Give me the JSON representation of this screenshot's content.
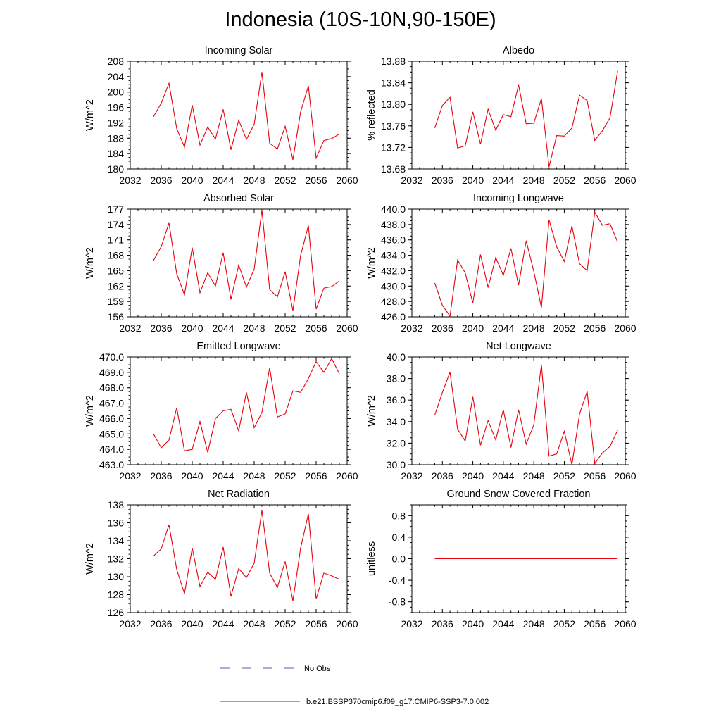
{
  "figure": {
    "title": "Indonesia (10S-10N,90-150E)"
  },
  "legend": {
    "entries": [
      {
        "label": "No Obs",
        "style": "dashed",
        "color": "#5a5ab4"
      },
      {
        "label": "b.e21.BSSP370cmip6.f09_g17.CMIP6-SSP3-7.0.002",
        "style": "solid",
        "color": "#e8000b"
      }
    ]
  },
  "colors": {
    "series": "#e8000b",
    "axis": "#000000"
  },
  "chart_data": [
    {
      "type": "line",
      "title": "Incoming Solar",
      "xlabel": "",
      "ylabel": "W/m^2",
      "xlim": [
        2032,
        2060
      ],
      "ylim": [
        180,
        208
      ],
      "xticks": [
        2032,
        2036,
        2040,
        2044,
        2048,
        2052,
        2056,
        2060
      ],
      "xtick_labels": [
        "2032",
        "2036",
        "2040",
        "2044",
        "2048",
        "2052",
        "2056",
        "2060"
      ],
      "yticks": [
        180,
        184,
        188,
        192,
        196,
        200,
        204,
        208
      ],
      "ytick_labels": [
        "180",
        "184",
        "188",
        "192",
        "196",
        "200",
        "204",
        "208"
      ],
      "x": [
        2035,
        2036,
        2037,
        2038,
        2039,
        2040,
        2041,
        2042,
        2043,
        2044,
        2045,
        2046,
        2047,
        2048,
        2049,
        2050,
        2051,
        2052,
        2053,
        2054,
        2055,
        2056,
        2057,
        2058,
        2059
      ],
      "series": [
        {
          "values": [
            193.6,
            197.1,
            202.3,
            190.5,
            185.7,
            196.6,
            186.2,
            190.9,
            187.8,
            195.5,
            185.0,
            192.7,
            187.7,
            191.6,
            205.2,
            186.7,
            185.2,
            191.1,
            182.4,
            194.9,
            201.6,
            182.8,
            187.4,
            187.9,
            189.1
          ]
        }
      ]
    },
    {
      "type": "line",
      "title": "Albedo",
      "xlabel": "",
      "ylabel": "% reflected",
      "xlim": [
        2032,
        2060
      ],
      "ylim": [
        13.68,
        13.88
      ],
      "xticks": [
        2032,
        2036,
        2040,
        2044,
        2048,
        2052,
        2056,
        2060
      ],
      "xtick_labels": [
        "2032",
        "2036",
        "2040",
        "2044",
        "2048",
        "2052",
        "2056",
        "2060"
      ],
      "yticks": [
        13.68,
        13.72,
        13.76,
        13.8,
        13.84,
        13.88
      ],
      "ytick_labels": [
        "13.68",
        "13.72",
        "13.76",
        "13.80",
        "13.84",
        "13.88"
      ],
      "x": [
        2035,
        2036,
        2037,
        2038,
        2039,
        2040,
        2041,
        2042,
        2043,
        2044,
        2045,
        2046,
        2047,
        2048,
        2049,
        2050,
        2051,
        2052,
        2053,
        2054,
        2055,
        2056,
        2057,
        2058,
        2059
      ],
      "series": [
        {
          "values": [
            13.756,
            13.798,
            13.813,
            13.719,
            13.723,
            13.786,
            13.726,
            13.791,
            13.752,
            13.781,
            13.777,
            13.836,
            13.764,
            13.765,
            13.811,
            13.684,
            13.742,
            13.741,
            13.756,
            13.817,
            13.807,
            13.733,
            13.751,
            13.775,
            13.862
          ]
        }
      ]
    },
    {
      "type": "line",
      "title": "Absorbed Solar",
      "xlabel": "",
      "ylabel": "W/m^2",
      "xlim": [
        2032,
        2060
      ],
      "ylim": [
        156,
        177
      ],
      "xticks": [
        2032,
        2036,
        2040,
        2044,
        2048,
        2052,
        2056,
        2060
      ],
      "xtick_labels": [
        "2032",
        "2036",
        "2040",
        "2044",
        "2048",
        "2052",
        "2056",
        "2060"
      ],
      "yticks": [
        156,
        159,
        162,
        165,
        168,
        171,
        174,
        177
      ],
      "ytick_labels": [
        "156",
        "159",
        "162",
        "165",
        "168",
        "171",
        "174",
        "177"
      ],
      "x": [
        2035,
        2036,
        2037,
        2038,
        2039,
        2040,
        2041,
        2042,
        2043,
        2044,
        2045,
        2046,
        2047,
        2048,
        2049,
        2050,
        2051,
        2052,
        2053,
        2054,
        2055,
        2056,
        2057,
        2058,
        2059
      ],
      "series": [
        {
          "values": [
            167.0,
            169.7,
            174.3,
            164.4,
            160.3,
            169.5,
            160.7,
            164.6,
            162.0,
            168.5,
            159.4,
            166.1,
            161.8,
            165.3,
            176.8,
            161.3,
            159.9,
            164.8,
            157.2,
            168.0,
            173.8,
            157.5,
            161.6,
            161.9,
            163.0
          ]
        }
      ]
    },
    {
      "type": "line",
      "title": "Incoming Longwave",
      "xlabel": "",
      "ylabel": "W/m^2",
      "xlim": [
        2032,
        2060
      ],
      "ylim": [
        426.0,
        440.0
      ],
      "xticks": [
        2032,
        2036,
        2040,
        2044,
        2048,
        2052,
        2056,
        2060
      ],
      "xtick_labels": [
        "2032",
        "2036",
        "2040",
        "2044",
        "2048",
        "2052",
        "2056",
        "2060"
      ],
      "yticks": [
        426,
        428,
        430,
        432,
        434,
        436,
        438,
        440
      ],
      "ytick_labels": [
        "426.0",
        "428.0",
        "430.0",
        "432.0",
        "434.0",
        "436.0",
        "438.0",
        "440.0"
      ],
      "x": [
        2035,
        2036,
        2037,
        2038,
        2039,
        2040,
        2041,
        2042,
        2043,
        2044,
        2045,
        2046,
        2047,
        2048,
        2049,
        2050,
        2051,
        2052,
        2053,
        2054,
        2055,
        2056,
        2057,
        2058,
        2059
      ],
      "series": [
        {
          "values": [
            430.4,
            427.5,
            426.1,
            433.4,
            431.7,
            427.8,
            434.1,
            429.8,
            433.7,
            431.4,
            434.9,
            430.1,
            435.9,
            431.9,
            427.2,
            438.6,
            435.1,
            433.2,
            437.8,
            432.9,
            432.0,
            439.6,
            437.9,
            438.1,
            435.7
          ]
        }
      ]
    },
    {
      "type": "line",
      "title": "Emitted Longwave",
      "xlabel": "",
      "ylabel": "W/m^2",
      "xlim": [
        2032,
        2060
      ],
      "ylim": [
        463.0,
        470.0
      ],
      "xticks": [
        2032,
        2036,
        2040,
        2044,
        2048,
        2052,
        2056,
        2060
      ],
      "xtick_labels": [
        "2032",
        "2036",
        "2040",
        "2044",
        "2048",
        "2052",
        "2056",
        "2060"
      ],
      "yticks": [
        463,
        464,
        465,
        466,
        467,
        468,
        469,
        470
      ],
      "ytick_labels": [
        "463.0",
        "464.0",
        "465.0",
        "466.0",
        "467.0",
        "468.0",
        "469.0",
        "470.0"
      ],
      "x": [
        2035,
        2036,
        2037,
        2038,
        2039,
        2040,
        2041,
        2042,
        2043,
        2044,
        2045,
        2046,
        2047,
        2048,
        2049,
        2050,
        2051,
        2052,
        2053,
        2054,
        2055,
        2056,
        2057,
        2058,
        2059
      ],
      "series": [
        {
          "values": [
            465.0,
            464.1,
            464.6,
            466.7,
            463.9,
            464.0,
            465.8,
            463.8,
            466.0,
            466.5,
            466.6,
            465.2,
            467.7,
            465.4,
            466.4,
            469.3,
            466.1,
            466.3,
            467.8,
            467.7,
            468.6,
            469.7,
            469.0,
            469.9,
            468.9
          ]
        }
      ]
    },
    {
      "type": "line",
      "title": "Net Longwave",
      "xlabel": "",
      "ylabel": "W/m^2",
      "xlim": [
        2032,
        2060
      ],
      "ylim": [
        30.0,
        40.0
      ],
      "xticks": [
        2032,
        2036,
        2040,
        2044,
        2048,
        2052,
        2056,
        2060
      ],
      "xtick_labels": [
        "2032",
        "2036",
        "2040",
        "2044",
        "2048",
        "2052",
        "2056",
        "2060"
      ],
      "yticks": [
        30,
        32,
        34,
        36,
        38,
        40
      ],
      "ytick_labels": [
        "30.0",
        "32.0",
        "34.0",
        "36.0",
        "38.0",
        "40.0"
      ],
      "x": [
        2035,
        2036,
        2037,
        2038,
        2039,
        2040,
        2041,
        2042,
        2043,
        2044,
        2045,
        2046,
        2047,
        2048,
        2049,
        2050,
        2051,
        2052,
        2053,
        2054,
        2055,
        2056,
        2057,
        2058,
        2059
      ],
      "series": [
        {
          "values": [
            34.6,
            36.7,
            38.6,
            33.3,
            32.2,
            36.3,
            31.8,
            34.1,
            32.3,
            35.1,
            31.6,
            35.1,
            31.9,
            33.7,
            39.3,
            30.8,
            31.0,
            33.1,
            30.0,
            34.7,
            36.8,
            30.1,
            31.1,
            31.7,
            33.2
          ]
        }
      ]
    },
    {
      "type": "line",
      "title": "Net Radiation",
      "xlabel": "",
      "ylabel": "W/m^2",
      "xlim": [
        2032,
        2060
      ],
      "ylim": [
        126,
        138
      ],
      "xticks": [
        2032,
        2036,
        2040,
        2044,
        2048,
        2052,
        2056,
        2060
      ],
      "xtick_labels": [
        "2032",
        "2036",
        "2040",
        "2044",
        "2048",
        "2052",
        "2056",
        "2060"
      ],
      "yticks": [
        126,
        128,
        130,
        132,
        134,
        136,
        138
      ],
      "ytick_labels": [
        "126",
        "128",
        "130",
        "132",
        "134",
        "136",
        "138"
      ],
      "x": [
        2035,
        2036,
        2037,
        2038,
        2039,
        2040,
        2041,
        2042,
        2043,
        2044,
        2045,
        2046,
        2047,
        2048,
        2049,
        2050,
        2051,
        2052,
        2053,
        2054,
        2055,
        2056,
        2057,
        2058,
        2059
      ],
      "series": [
        {
          "values": [
            132.3,
            133.1,
            135.8,
            130.8,
            128.1,
            133.2,
            128.9,
            130.5,
            129.7,
            133.3,
            127.8,
            130.9,
            129.9,
            131.5,
            137.4,
            130.4,
            128.8,
            131.7,
            127.3,
            133.2,
            137.0,
            127.5,
            130.4,
            130.1,
            129.7
          ]
        }
      ]
    },
    {
      "type": "line",
      "title": "Ground Snow Covered Fraction",
      "xlabel": "",
      "ylabel": "unitless",
      "xlim": [
        2032,
        2060
      ],
      "ylim": [
        -1.0,
        1.0
      ],
      "xticks": [
        2032,
        2036,
        2040,
        2044,
        2048,
        2052,
        2056,
        2060
      ],
      "xtick_labels": [
        "2032",
        "2036",
        "2040",
        "2044",
        "2048",
        "2052",
        "2056",
        "2060"
      ],
      "yticks": [
        -0.8,
        -0.4,
        0.0,
        0.4,
        0.8
      ],
      "ytick_labels": [
        "-0.8",
        "-0.4",
        "0.0",
        "0.4",
        "0.8"
      ],
      "x": [
        2035,
        2036,
        2037,
        2038,
        2039,
        2040,
        2041,
        2042,
        2043,
        2044,
        2045,
        2046,
        2047,
        2048,
        2049,
        2050,
        2051,
        2052,
        2053,
        2054,
        2055,
        2056,
        2057,
        2058,
        2059
      ],
      "series": [
        {
          "values": [
            0,
            0,
            0,
            0,
            0,
            0,
            0,
            0,
            0,
            0,
            0,
            0,
            0,
            0,
            0,
            0,
            0,
            0,
            0,
            0,
            0,
            0,
            0,
            0,
            0
          ]
        }
      ]
    }
  ]
}
